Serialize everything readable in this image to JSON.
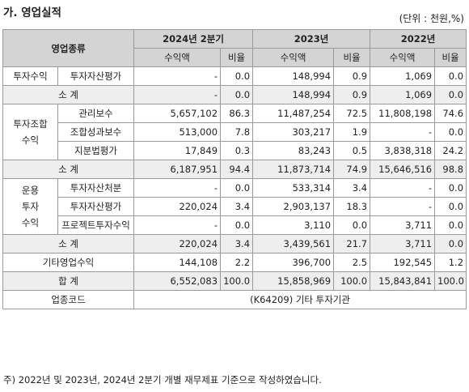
{
  "section_title": "가. 영업실적",
  "unit": "(단위 : 천원,%)",
  "headers": {
    "category": "영업종류",
    "periods": [
      "2024년 2분기",
      "2023년",
      "2022년"
    ],
    "revenue": "수익액",
    "ratio": "비율"
  },
  "groups": {
    "investment": "투자수익",
    "partnership": "투자조합\n수익",
    "operation": "운용\n투자\n수익"
  },
  "rows": [
    {
      "label": "투자자산평가",
      "v": [
        "-",
        "0.0",
        "148,994",
        "0.9",
        "1,069",
        "0.0"
      ]
    },
    {
      "label": "소 계",
      "v": [
        "-",
        "0.0",
        "148,994",
        "0.9",
        "1,069",
        "0.0"
      ]
    },
    {
      "label": "관리보수",
      "v": [
        "5,657,102",
        "86.3",
        "11,487,254",
        "72.5",
        "11,808,198",
        "74.6"
      ]
    },
    {
      "label": "조합성과보수",
      "v": [
        "513,000",
        "7.8",
        "303,217",
        "1.9",
        "-",
        "0.0"
      ]
    },
    {
      "label": "지분법평가",
      "v": [
        "17,849",
        "0.3",
        "83,243",
        "0.5",
        "3,838,318",
        "24.2"
      ]
    },
    {
      "label": "소 계",
      "v": [
        "6,187,951",
        "94.4",
        "11,873,714",
        "74.9",
        "15,646,516",
        "98.8"
      ]
    },
    {
      "label": "투자자산처분",
      "v": [
        "-",
        "0.0",
        "533,314",
        "3.4",
        "-",
        "0.0"
      ]
    },
    {
      "label": "투자자산평가",
      "v": [
        "220,024",
        "3.4",
        "2,903,137",
        "18.3",
        "-",
        "0.0"
      ]
    },
    {
      "label": "프로젝트투자수익",
      "v": [
        "-",
        "0.0",
        "3,110",
        "0.0",
        "3,711",
        "0.0"
      ]
    },
    {
      "label": "소 계",
      "v": [
        "220,024",
        "3.4",
        "3,439,561",
        "21.7",
        "3,711",
        "0.0"
      ]
    },
    {
      "label": "기타영업수익",
      "v": [
        "144,108",
        "2.2",
        "396,700",
        "2.5",
        "192,545",
        "1.2"
      ]
    },
    {
      "label": "합 계",
      "v": [
        "6,552,083",
        "100.0",
        "15,858,969",
        "100.0",
        "15,843,841",
        "100.0"
      ]
    }
  ],
  "industry_code_label": "업종코드",
  "industry_code_value": "(K64209) 기타 투자기관",
  "note": "주) 2022년 및 2023년, 2024년 2분기 개별 재무제표 기준으로 작성하였습니다."
}
